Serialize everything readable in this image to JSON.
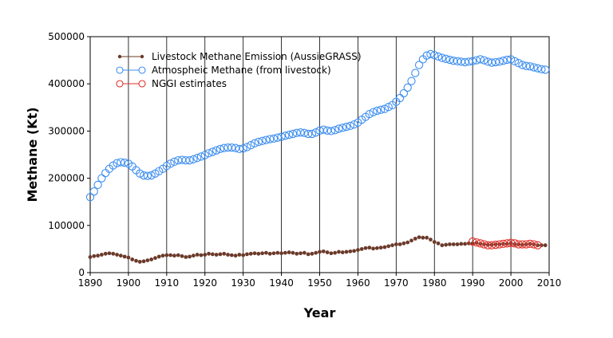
{
  "chart_data": {
    "type": "scatter",
    "title": "",
    "xlabel": "Year",
    "ylabel": "Methane (Kt)",
    "xlim": [
      1890,
      2010
    ],
    "ylim": [
      0,
      500000
    ],
    "x_ticks": [
      "1890",
      "1900",
      "1910",
      "1920",
      "1930",
      "1940",
      "1950",
      "1960",
      "1970",
      "1980",
      "1990",
      "2000",
      "2010"
    ],
    "y_ticks": [
      "0",
      "100000",
      "200000",
      "300000",
      "400000",
      "500000"
    ],
    "grid": "vertical lines at each decade",
    "legend_position": "top-left",
    "series": [
      {
        "name": "Livestock Methane Emission (AussieGRASS)",
        "color": "#6b3a2a",
        "marker": "filled-dot",
        "x": [
          1890,
          1891,
          1892,
          1893,
          1894,
          1895,
          1896,
          1897,
          1898,
          1899,
          1900,
          1901,
          1902,
          1903,
          1904,
          1905,
          1906,
          1907,
          1908,
          1909,
          1910,
          1911,
          1912,
          1913,
          1914,
          1915,
          1916,
          1917,
          1918,
          1919,
          1920,
          1921,
          1922,
          1923,
          1924,
          1925,
          1926,
          1927,
          1928,
          1929,
          1930,
          1931,
          1932,
          1933,
          1934,
          1935,
          1936,
          1937,
          1938,
          1939,
          1940,
          1941,
          1942,
          1943,
          1944,
          1945,
          1946,
          1947,
          1948,
          1949,
          1950,
          1951,
          1952,
          1953,
          1954,
          1955,
          1956,
          1957,
          1958,
          1959,
          1960,
          1961,
          1962,
          1963,
          1964,
          1965,
          1966,
          1967,
          1968,
          1969,
          1970,
          1971,
          1972,
          1973,
          1974,
          1975,
          1976,
          1977,
          1978,
          1979,
          1980,
          1981,
          1982,
          1983,
          1984,
          1985,
          1986,
          1987,
          1988,
          1989,
          1990,
          1991,
          1992,
          1993,
          1994,
          1995,
          1996,
          1997,
          1998,
          1999,
          2000,
          2001,
          2002,
          2003,
          2004,
          2005,
          2006,
          2007,
          2008,
          2009
        ],
        "y": [
          33000,
          35000,
          36000,
          38000,
          40000,
          41000,
          40000,
          38000,
          36000,
          34000,
          32000,
          28000,
          25000,
          23000,
          24000,
          26000,
          28000,
          31000,
          34000,
          36000,
          37000,
          37000,
          36000,
          37000,
          35000,
          33000,
          34000,
          36000,
          38000,
          37000,
          38000,
          40000,
          39000,
          38000,
          39000,
          40000,
          38000,
          37000,
          36000,
          38000,
          37000,
          39000,
          40000,
          41000,
          40000,
          41000,
          42000,
          40000,
          41000,
          42000,
          41000,
          42000,
          43000,
          42000,
          40000,
          41000,
          42000,
          39000,
          40000,
          42000,
          44000,
          45000,
          43000,
          41000,
          42000,
          44000,
          43000,
          44000,
          45000,
          46000,
          48000,
          50000,
          52000,
          53000,
          51000,
          52000,
          53000,
          54000,
          56000,
          58000,
          60000,
          60000,
          62000,
          64000,
          68000,
          72000,
          75000,
          74000,
          74000,
          70000,
          65000,
          62000,
          58000,
          59000,
          60000,
          60000,
          60000,
          61000,
          61000,
          62000,
          62000,
          63000,
          61000,
          60000,
          59000,
          59000,
          60000,
          60000,
          61000,
          61000,
          62000,
          60000,
          60000,
          59000,
          60000,
          61000,
          60000,
          58000,
          58000,
          58000
        ]
      },
      {
        "name": "Atmospheic Methane (from livestock)",
        "color": "#3d8ef0",
        "marker": "open-circle",
        "x": [
          1890,
          1891,
          1892,
          1893,
          1894,
          1895,
          1896,
          1897,
          1898,
          1899,
          1900,
          1901,
          1902,
          1903,
          1904,
          1905,
          1906,
          1907,
          1908,
          1909,
          1910,
          1911,
          1912,
          1913,
          1914,
          1915,
          1916,
          1917,
          1918,
          1919,
          1920,
          1921,
          1922,
          1923,
          1924,
          1925,
          1926,
          1927,
          1928,
          1929,
          1930,
          1931,
          1932,
          1933,
          1934,
          1935,
          1936,
          1937,
          1938,
          1939,
          1940,
          1941,
          1942,
          1943,
          1944,
          1945,
          1946,
          1947,
          1948,
          1949,
          1950,
          1951,
          1952,
          1953,
          1954,
          1955,
          1956,
          1957,
          1958,
          1959,
          1960,
          1961,
          1962,
          1963,
          1964,
          1965,
          1966,
          1967,
          1968,
          1969,
          1970,
          1971,
          1972,
          1973,
          1974,
          1975,
          1976,
          1977,
          1978,
          1979,
          1980,
          1981,
          1982,
          1983,
          1984,
          1985,
          1986,
          1987,
          1988,
          1989,
          1990,
          1991,
          1992,
          1993,
          1994,
          1995,
          1996,
          1997,
          1998,
          1999,
          2000,
          2001,
          2002,
          2003,
          2004,
          2005,
          2006,
          2007,
          2008,
          2009
        ],
        "y": [
          160000,
          172000,
          186000,
          200000,
          211000,
          220000,
          227000,
          232000,
          234000,
          233000,
          231000,
          225000,
          217000,
          210000,
          206000,
          205000,
          206000,
          210000,
          215000,
          220000,
          226000,
          231000,
          235000,
          238000,
          239000,
          238000,
          238000,
          240000,
          243000,
          246000,
          249000,
          253000,
          256000,
          259000,
          262000,
          264000,
          265000,
          265000,
          264000,
          262000,
          263000,
          266000,
          270000,
          274000,
          277000,
          279000,
          281000,
          283000,
          284000,
          286000,
          288000,
          290000,
          292000,
          294000,
          296000,
          297000,
          296000,
          294000,
          294000,
          297000,
          301000,
          303000,
          301000,
          300000,
          302000,
          305000,
          307000,
          309000,
          311000,
          314000,
          318000,
          324000,
          330000,
          336000,
          340000,
          343000,
          345000,
          347000,
          351000,
          355000,
          362000,
          370000,
          380000,
          392000,
          406000,
          423000,
          440000,
          452000,
          460000,
          463000,
          461000,
          458000,
          455000,
          453000,
          451000,
          449000,
          448000,
          447000,
          446000,
          447000,
          448000,
          450000,
          452000,
          450000,
          447000,
          445000,
          446000,
          447000,
          449000,
          451000,
          452000,
          448000,
          444000,
          440000,
          438000,
          437000,
          435000,
          433000,
          431000,
          430000
        ]
      },
      {
        "name": "NGGI estimates",
        "color": "#e0302a",
        "marker": "open-circle",
        "x": [
          1990,
          1991,
          1992,
          1993,
          1994,
          1995,
          1996,
          1997,
          1998,
          1999,
          2000,
          2001,
          2002,
          2003,
          2004,
          2005,
          2006,
          2007
        ],
        "y": [
          66000,
          64000,
          62000,
          60000,
          58000,
          58000,
          59000,
          60000,
          61000,
          62000,
          63000,
          62000,
          60000,
          60000,
          60000,
          61000,
          60000,
          58000
        ]
      }
    ]
  }
}
